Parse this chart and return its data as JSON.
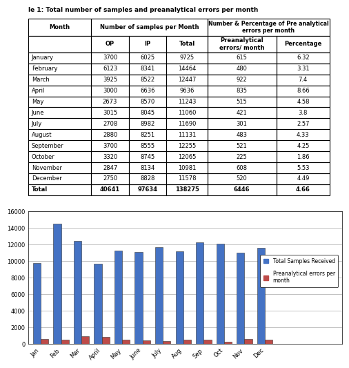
{
  "title": "le 1: Total number of samples and preanalytical errors per month",
  "months": [
    "January",
    "February",
    "March",
    "April",
    "May",
    "June",
    "July",
    "August",
    "September",
    "October",
    "November",
    "December"
  ],
  "months_short": [
    "Jan",
    "Feb",
    "Mar",
    "April",
    "May",
    "June",
    "July",
    "Aug",
    "Sep",
    "Oct",
    "Nov",
    "Dec"
  ],
  "op": [
    3700,
    6123,
    3925,
    3000,
    2673,
    3015,
    2708,
    2880,
    3700,
    3320,
    2847,
    2750
  ],
  "ip": [
    6025,
    8341,
    8522,
    6636,
    8570,
    8045,
    8982,
    8251,
    8555,
    8745,
    8134,
    8828
  ],
  "total": [
    9725,
    14464,
    12447,
    9636,
    11243,
    11060,
    11690,
    11131,
    12255,
    12065,
    10981,
    11578
  ],
  "pre_errors": [
    615,
    480,
    922,
    835,
    515,
    421,
    301,
    483,
    521,
    225,
    608,
    520
  ],
  "percentage": [
    "6.32",
    "3.31",
    "7.4",
    "8.66",
    "4.58",
    "3.8",
    "2.57",
    "4.33",
    "4.25",
    "1.86",
    "5.53",
    "4.49"
  ],
  "total_row": {
    "op": "40641",
    "ip": "97634",
    "total": "138275",
    "pre_errors": "6446",
    "percentage": "4.66"
  },
  "bar_color_blue": "#4472C4",
  "bar_color_red": "#BE4B48",
  "chart_bg": "#FFFFFF",
  "legend_label_blue": "Total Samples Received",
  "legend_label_red": "Preanalytical errors per\nmonth",
  "ylim": [
    0,
    16000
  ],
  "yticks": [
    0,
    2000,
    4000,
    6000,
    8000,
    10000,
    12000,
    14000,
    16000
  ],
  "col_widths": [
    0.2,
    0.12,
    0.12,
    0.13,
    0.22,
    0.17
  ],
  "header1": [
    "Month",
    "Number of samples per Month",
    "",
    "",
    "Number & Percentage of Pre analytical\nerrors per month",
    ""
  ],
  "header2": [
    "",
    "OP",
    "IP",
    "Total",
    "Preanalytical\nerrors/ month",
    "Percentage"
  ],
  "font_size_table": 6.0,
  "font_size_chart": 6.0
}
